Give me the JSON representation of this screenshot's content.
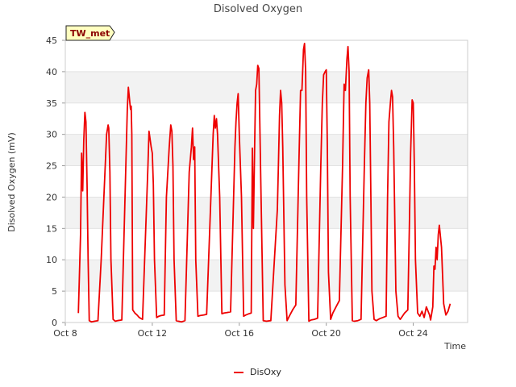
{
  "chart_data": {
    "type": "line",
    "title": "Disolved Oxygen",
    "tag": "TW_met",
    "xlabel": "Time",
    "ylabel": "Disolved Oxygen (mV)",
    "xlim": [
      8.0,
      26.5
    ],
    "ylim": [
      0,
      45
    ],
    "x_ticks": [
      {
        "value": 8,
        "label": "Oct 8"
      },
      {
        "value": 12,
        "label": "Oct 12"
      },
      {
        "value": 16,
        "label": "Oct 16"
      },
      {
        "value": 20,
        "label": "Oct 20"
      },
      {
        "value": 24,
        "label": "Oct 24"
      }
    ],
    "y_ticks": [
      0,
      5,
      10,
      15,
      20,
      25,
      30,
      35,
      40,
      45
    ],
    "grid": "horizontal bands",
    "legend_position": "bottom-center",
    "series": [
      {
        "name": "DisOxy",
        "color": "#ee0000",
        "x": [
          8.6,
          8.7,
          8.75,
          8.8,
          8.85,
          8.9,
          8.95,
          9.0,
          9.05,
          9.1,
          9.2,
          9.35,
          9.5,
          9.65,
          9.9,
          9.97,
          10.0,
          10.05,
          10.1,
          10.2,
          10.3,
          10.4,
          10.6,
          10.85,
          10.9,
          10.97,
          11.0,
          11.03,
          11.06,
          11.1,
          11.2,
          11.3,
          11.4,
          11.55,
          11.8,
          11.85,
          11.95,
          12.0,
          12.05,
          12.1,
          12.2,
          12.3,
          12.4,
          12.55,
          12.65,
          12.78,
          12.85,
          12.9,
          12.95,
          13.0,
          13.1,
          13.2,
          13.35,
          13.5,
          13.7,
          13.8,
          13.85,
          13.9,
          13.95,
          14.0,
          14.1,
          14.2,
          14.35,
          14.5,
          14.8,
          14.85,
          14.9,
          14.95,
          15.0,
          15.1,
          15.2,
          15.3,
          15.45,
          15.6,
          15.8,
          15.85,
          15.9,
          15.95,
          16.0,
          16.1,
          16.2,
          16.3,
          16.45,
          16.55,
          16.6,
          16.65,
          16.7,
          16.75,
          16.8,
          16.85,
          16.9,
          17.0,
          17.1,
          17.25,
          17.45,
          17.75,
          17.8,
          17.85,
          17.9,
          17.95,
          18.0,
          18.1,
          18.2,
          18.3,
          18.45,
          18.6,
          18.75,
          18.82,
          18.88,
          18.95,
          19.0,
          19.05,
          19.1,
          19.2,
          19.3,
          19.45,
          19.6,
          19.75,
          19.82,
          19.88,
          19.95,
          20.0,
          20.05,
          20.1,
          20.2,
          20.3,
          20.45,
          20.6,
          20.75,
          20.82,
          20.88,
          20.95,
          21.0,
          21.05,
          21.1,
          21.2,
          21.3,
          21.45,
          21.6,
          21.75,
          21.82,
          21.88,
          21.95,
          22.0,
          22.05,
          22.1,
          22.2,
          22.3,
          22.45,
          22.6,
          22.75,
          22.82,
          22.88,
          22.95,
          23.0,
          23.05,
          23.1,
          23.2,
          23.3,
          23.4,
          23.5,
          23.6,
          23.75,
          23.82,
          23.88,
          23.95,
          24.0,
          24.05,
          24.1,
          24.2,
          24.3,
          24.4,
          24.5,
          24.6,
          24.75,
          24.8,
          24.85,
          24.9,
          24.95,
          25.0,
          25.05,
          25.1,
          25.15,
          25.2,
          25.3,
          25.4,
          25.5,
          25.6,
          25.7
        ],
        "values": [
          1.5,
          14,
          27,
          21,
          29,
          33.5,
          32,
          22,
          10,
          0.3,
          0.1,
          0.2,
          0.3,
          10,
          30,
          31.5,
          31,
          24,
          10,
          0.5,
          0.2,
          0.3,
          0.4,
          34,
          37.5,
          35,
          34,
          34.5,
          30,
          2,
          1.5,
          1.2,
          0.8,
          0.5,
          25,
          30.5,
          28,
          27,
          22,
          10,
          0.8,
          1.0,
          1.1,
          1.2,
          20,
          28,
          31.5,
          30.5,
          25,
          10,
          0.3,
          0.2,
          0.1,
          0.3,
          24,
          28,
          31,
          26,
          28,
          10,
          1.0,
          1.1,
          1.2,
          1.3,
          30,
          33,
          31,
          32.5,
          30,
          20,
          1.4,
          1.5,
          1.6,
          1.7,
          28,
          32,
          35,
          36.5,
          30,
          20,
          1.0,
          1.2,
          1.4,
          1.5,
          27.8,
          15,
          27,
          37,
          38,
          41,
          40.5,
          20,
          0.3,
          0.2,
          0.3,
          18,
          25,
          33,
          37,
          35,
          28,
          6,
          0.3,
          1.0,
          2.0,
          2.8,
          27,
          37,
          37,
          43.5,
          44.5,
          40,
          20,
          0.2,
          0.4,
          0.5,
          0.7,
          25,
          35,
          39.5,
          40,
          40.3,
          28,
          8,
          0.5,
          1.5,
          2.5,
          3.5,
          25,
          38,
          37,
          42,
          44,
          40,
          20,
          0.3,
          0.2,
          0.3,
          0.5,
          25,
          35,
          39,
          40.3,
          35,
          20,
          5,
          0.5,
          0.3,
          0.6,
          0.8,
          1.0,
          20,
          32,
          35,
          37,
          36,
          28,
          5,
          1.0,
          0.5,
          1.0,
          1.5,
          2.0,
          15,
          27,
          35.5,
          35,
          25,
          10,
          1.5,
          1.0,
          1.8,
          0.8,
          2.5,
          1.2,
          0.4,
          1.5,
          2.5,
          9,
          8.5,
          12,
          10,
          14,
          15.5,
          12,
          3,
          1.2,
          1.8,
          3
        ]
      }
    ]
  }
}
